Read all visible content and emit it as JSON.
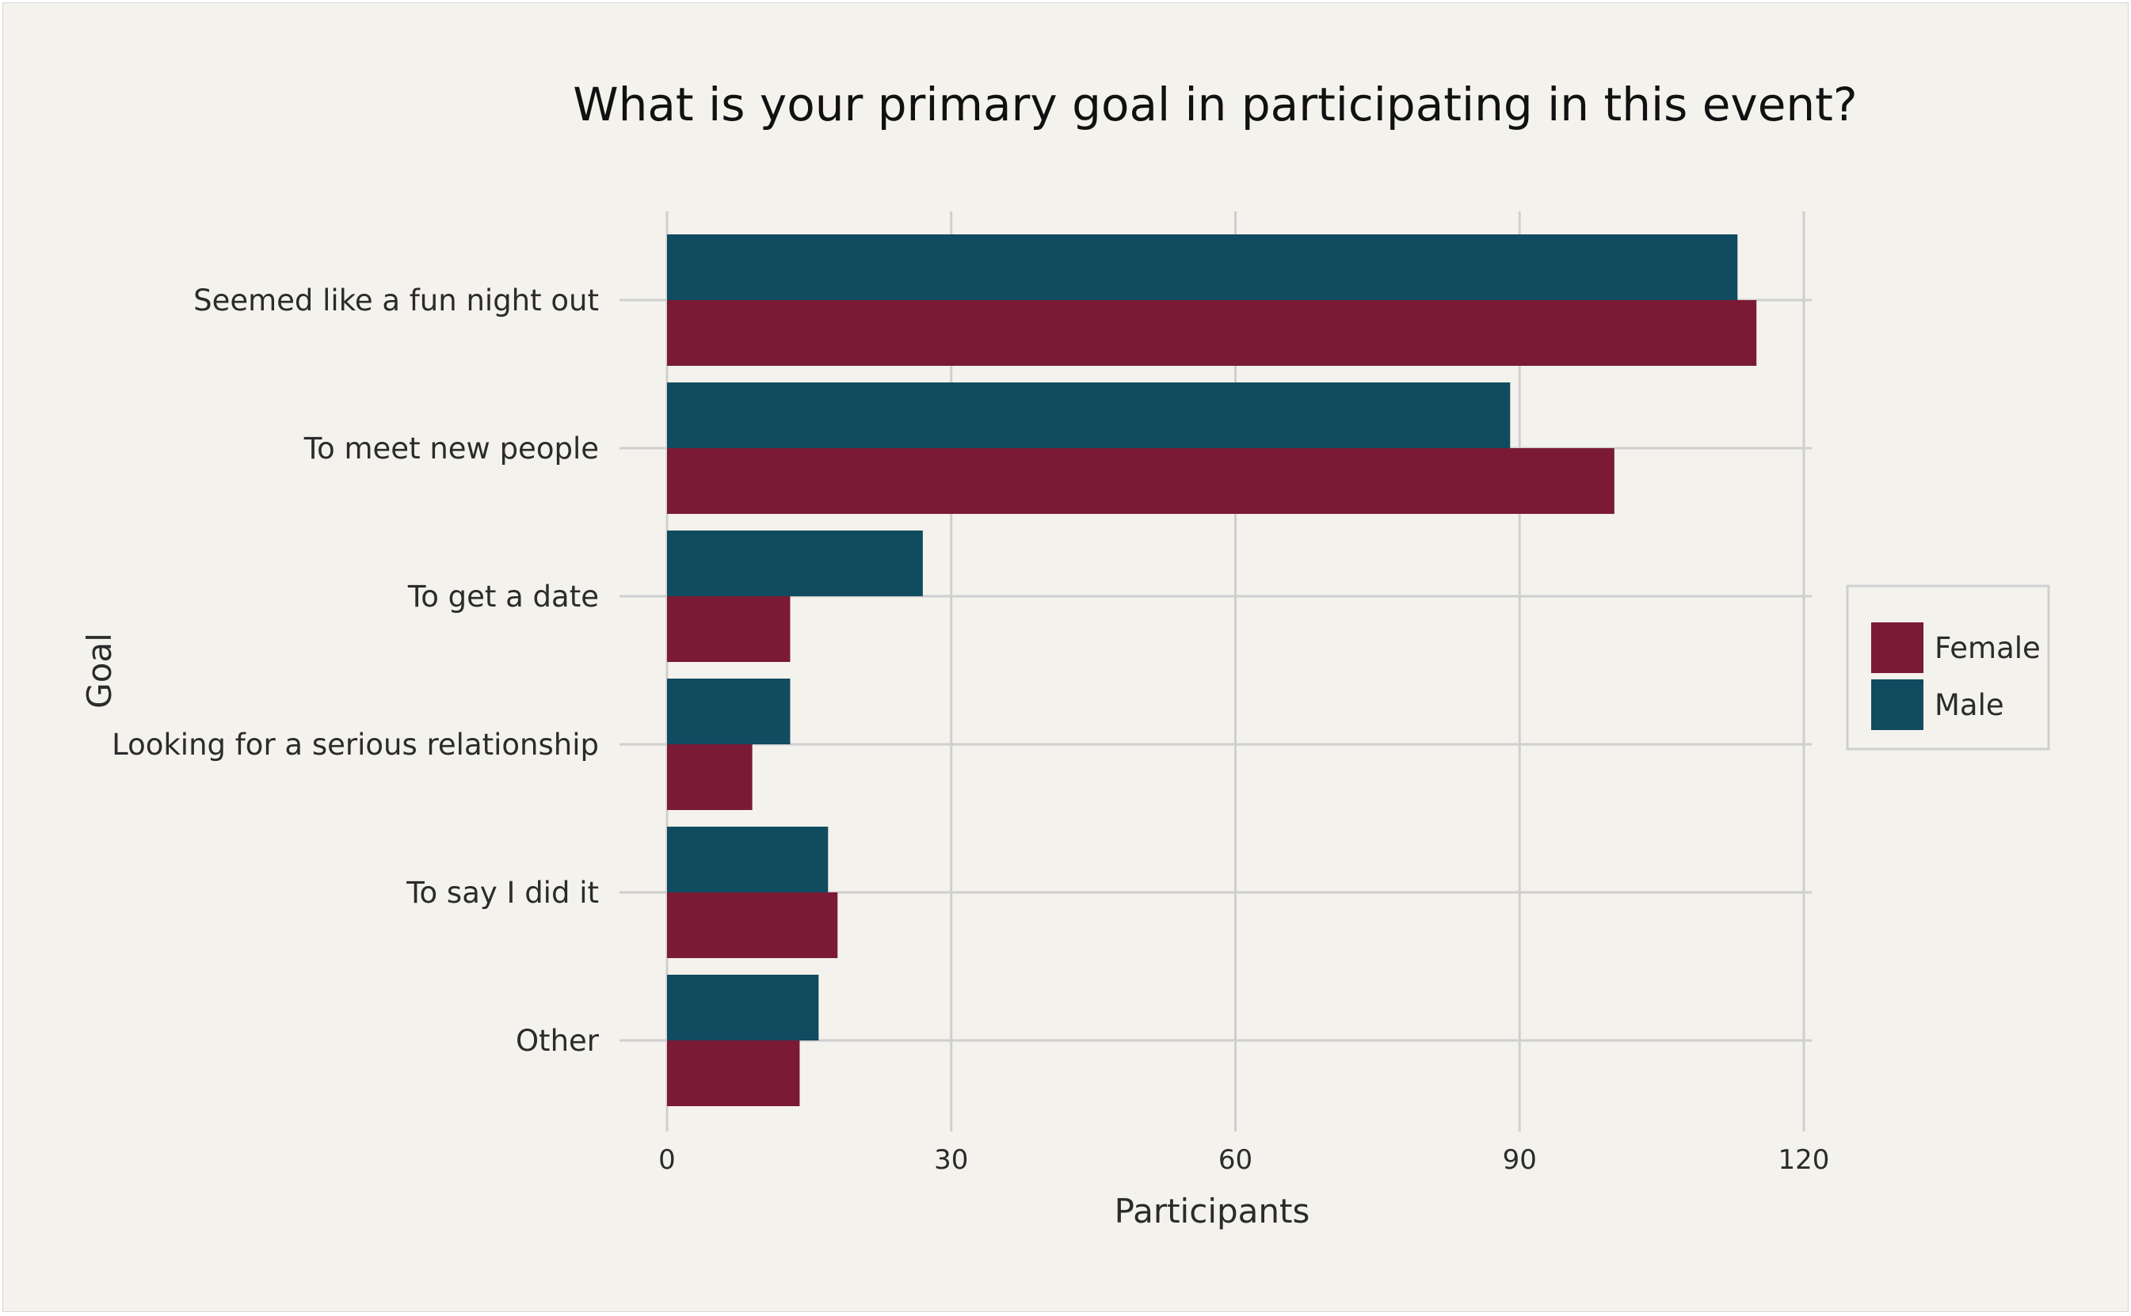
{
  "chart_data": {
    "type": "bar",
    "orientation": "horizontal",
    "title": "What is your primary goal in participating in this event?",
    "xlabel": "Participants",
    "ylabel": "Goal",
    "xlim": [
      0,
      120
    ],
    "x_ticks": [
      0,
      30,
      60,
      90,
      120
    ],
    "grid": true,
    "legend_position": "right",
    "categories": [
      "Seemed like a fun night out",
      "To meet new people",
      "To get a date",
      "Looking for a serious relationship",
      "To say I did it",
      "Other"
    ],
    "series": [
      {
        "name": "Female",
        "color": "#7b1a35",
        "values": [
          115,
          100,
          13,
          9,
          18,
          14
        ]
      },
      {
        "name": "Male",
        "color": "#114b5f",
        "values": [
          113,
          89,
          27,
          13,
          17,
          16
        ]
      }
    ]
  }
}
